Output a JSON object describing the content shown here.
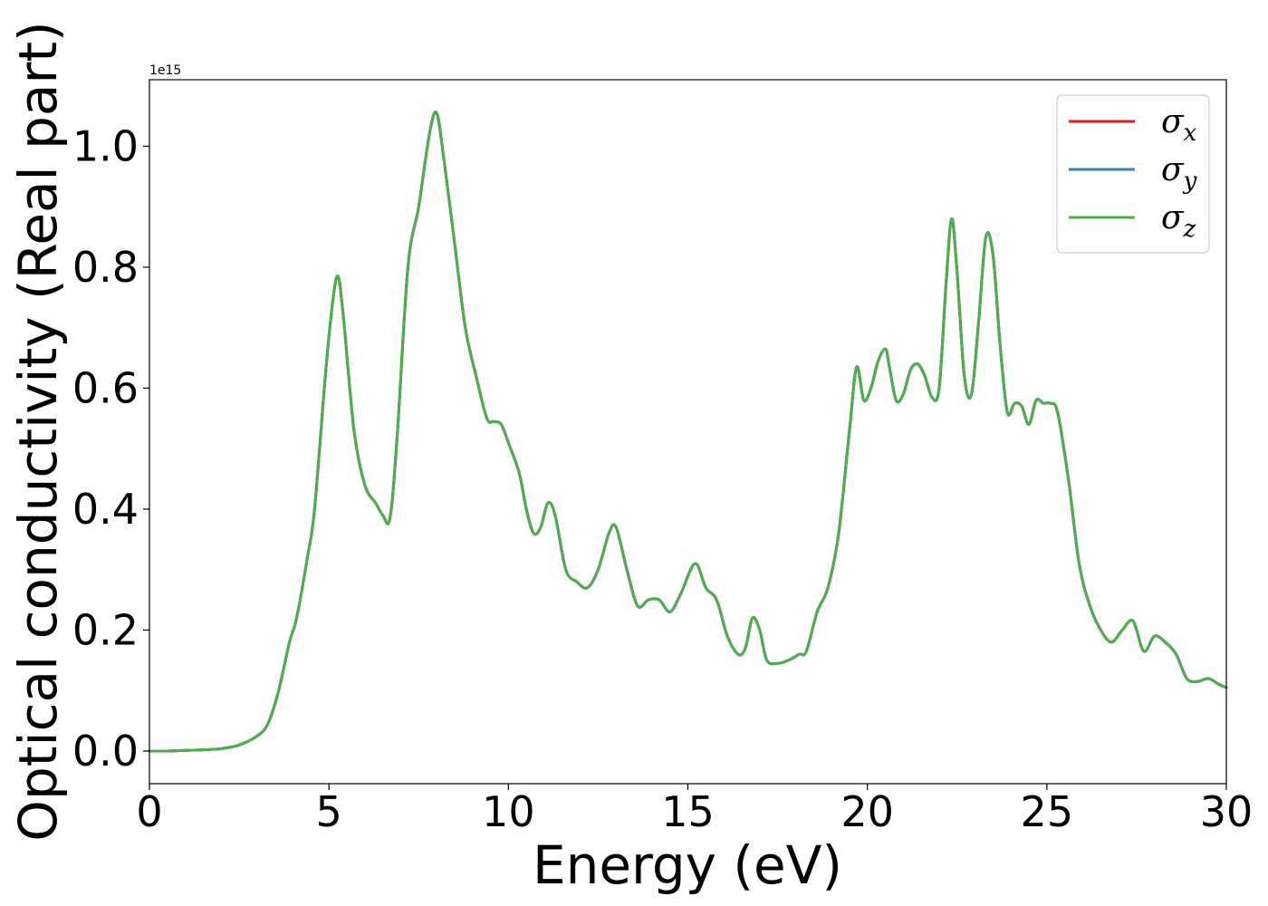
{
  "chart_data": {
    "type": "line",
    "title": "",
    "xlabel": "Energy (eV)",
    "ylabel": "Optical conductivity (Real part)",
    "y_offset_text": "1e15",
    "xlim": [
      0,
      30
    ],
    "ylim": [
      -0.054,
      1.11
    ],
    "xticks": [
      "0",
      "5",
      "10",
      "15",
      "20",
      "25",
      "30"
    ],
    "yticks": [
      "0.0",
      "0.2",
      "0.4",
      "0.6",
      "0.8",
      "1.0"
    ],
    "grid": false,
    "legend_position": "top-right",
    "legend": [
      {
        "symbol": "σ",
        "subscript": "x",
        "color": "#e41a1c"
      },
      {
        "symbol": "σ",
        "subscript": "y",
        "color": "#377eb8"
      },
      {
        "symbol": "σ",
        "subscript": "z",
        "color": "#4daf4a"
      }
    ],
    "x": [
      0,
      0.5,
      1,
      1.5,
      2,
      2.5,
      3,
      3.3,
      3.6,
      3.9,
      4.1,
      4.4,
      4.6,
      4.9,
      5.1,
      5.25,
      5.4,
      5.7,
      6.0,
      6.3,
      6.5,
      6.7,
      6.9,
      7.2,
      7.5,
      7.8,
      8.0,
      8.2,
      8.5,
      8.8,
      9.1,
      9.4,
      9.6,
      9.8,
      10.0,
      10.3,
      10.5,
      10.7,
      10.9,
      11.1,
      11.3,
      11.6,
      11.9,
      12.2,
      12.5,
      12.8,
      13.0,
      13.3,
      13.6,
      13.9,
      14.2,
      14.5,
      14.8,
      15.2,
      15.5,
      15.8,
      16.1,
      16.4,
      16.6,
      16.8,
      17.0,
      17.2,
      17.5,
      17.8,
      18.1,
      18.3,
      18.6,
      18.9,
      19.2,
      19.5,
      19.7,
      19.9,
      20.1,
      20.3,
      20.5,
      20.6,
      20.8,
      21.0,
      21.2,
      21.4,
      21.6,
      21.8,
      22.0,
      22.2,
      22.35,
      22.5,
      22.7,
      22.9,
      23.1,
      23.3,
      23.5,
      23.7,
      23.9,
      24.1,
      24.3,
      24.5,
      24.7,
      24.9,
      25.1,
      25.3,
      25.6,
      25.9,
      26.2,
      26.5,
      26.8,
      27.1,
      27.4,
      27.7,
      28.0,
      28.3,
      28.6,
      28.9,
      29.2,
      29.5,
      29.8,
      30.0
    ],
    "series": [
      {
        "name": "σx",
        "values": [
          0.0,
          0.0,
          0.001,
          0.002,
          0.004,
          0.01,
          0.025,
          0.045,
          0.1,
          0.18,
          0.22,
          0.32,
          0.4,
          0.62,
          0.74,
          0.785,
          0.72,
          0.53,
          0.44,
          0.41,
          0.39,
          0.385,
          0.52,
          0.8,
          0.9,
          1.02,
          1.055,
          0.98,
          0.84,
          0.7,
          0.62,
          0.55,
          0.545,
          0.54,
          0.51,
          0.46,
          0.4,
          0.36,
          0.37,
          0.41,
          0.39,
          0.3,
          0.28,
          0.27,
          0.3,
          0.36,
          0.37,
          0.3,
          0.24,
          0.25,
          0.25,
          0.23,
          0.26,
          0.31,
          0.27,
          0.25,
          0.19,
          0.16,
          0.17,
          0.22,
          0.2,
          0.15,
          0.145,
          0.15,
          0.16,
          0.165,
          0.23,
          0.27,
          0.36,
          0.53,
          0.635,
          0.58,
          0.6,
          0.645,
          0.665,
          0.64,
          0.58,
          0.59,
          0.63,
          0.64,
          0.62,
          0.585,
          0.6,
          0.78,
          0.88,
          0.79,
          0.62,
          0.59,
          0.71,
          0.85,
          0.82,
          0.67,
          0.56,
          0.575,
          0.57,
          0.54,
          0.58,
          0.575,
          0.575,
          0.56,
          0.45,
          0.31,
          0.24,
          0.2,
          0.18,
          0.2,
          0.215,
          0.165,
          0.19,
          0.18,
          0.16,
          0.12,
          0.115,
          0.12,
          0.11,
          0.105
        ]
      },
      {
        "name": "σy",
        "values": [
          0.0,
          0.0,
          0.001,
          0.002,
          0.004,
          0.01,
          0.025,
          0.045,
          0.1,
          0.18,
          0.22,
          0.32,
          0.4,
          0.62,
          0.74,
          0.785,
          0.72,
          0.53,
          0.44,
          0.41,
          0.39,
          0.385,
          0.52,
          0.8,
          0.9,
          1.02,
          1.055,
          0.98,
          0.84,
          0.7,
          0.62,
          0.55,
          0.545,
          0.54,
          0.51,
          0.46,
          0.4,
          0.36,
          0.37,
          0.41,
          0.39,
          0.3,
          0.28,
          0.27,
          0.3,
          0.36,
          0.37,
          0.3,
          0.24,
          0.25,
          0.25,
          0.23,
          0.26,
          0.31,
          0.27,
          0.25,
          0.19,
          0.16,
          0.17,
          0.22,
          0.2,
          0.15,
          0.145,
          0.15,
          0.16,
          0.165,
          0.23,
          0.27,
          0.36,
          0.53,
          0.635,
          0.58,
          0.6,
          0.645,
          0.665,
          0.64,
          0.58,
          0.59,
          0.63,
          0.64,
          0.62,
          0.585,
          0.6,
          0.78,
          0.88,
          0.79,
          0.62,
          0.59,
          0.71,
          0.85,
          0.82,
          0.67,
          0.56,
          0.575,
          0.57,
          0.54,
          0.58,
          0.575,
          0.575,
          0.56,
          0.45,
          0.31,
          0.24,
          0.2,
          0.18,
          0.2,
          0.215,
          0.165,
          0.19,
          0.18,
          0.16,
          0.12,
          0.115,
          0.12,
          0.11,
          0.105
        ]
      },
      {
        "name": "σz",
        "values": [
          0.0,
          0.0,
          0.001,
          0.002,
          0.004,
          0.01,
          0.025,
          0.045,
          0.1,
          0.18,
          0.22,
          0.32,
          0.4,
          0.62,
          0.74,
          0.785,
          0.72,
          0.53,
          0.44,
          0.41,
          0.39,
          0.385,
          0.52,
          0.8,
          0.9,
          1.02,
          1.055,
          0.98,
          0.84,
          0.7,
          0.62,
          0.55,
          0.545,
          0.54,
          0.51,
          0.46,
          0.4,
          0.36,
          0.37,
          0.41,
          0.39,
          0.3,
          0.28,
          0.27,
          0.3,
          0.36,
          0.37,
          0.3,
          0.24,
          0.25,
          0.25,
          0.23,
          0.26,
          0.31,
          0.27,
          0.25,
          0.19,
          0.16,
          0.17,
          0.22,
          0.2,
          0.15,
          0.145,
          0.15,
          0.16,
          0.165,
          0.23,
          0.27,
          0.36,
          0.53,
          0.635,
          0.58,
          0.6,
          0.645,
          0.665,
          0.64,
          0.58,
          0.59,
          0.63,
          0.64,
          0.62,
          0.585,
          0.6,
          0.78,
          0.88,
          0.79,
          0.62,
          0.59,
          0.71,
          0.85,
          0.82,
          0.67,
          0.56,
          0.575,
          0.57,
          0.54,
          0.58,
          0.575,
          0.575,
          0.56,
          0.45,
          0.31,
          0.24,
          0.2,
          0.18,
          0.2,
          0.215,
          0.165,
          0.19,
          0.18,
          0.16,
          0.12,
          0.115,
          0.12,
          0.11,
          0.105
        ]
      }
    ]
  }
}
